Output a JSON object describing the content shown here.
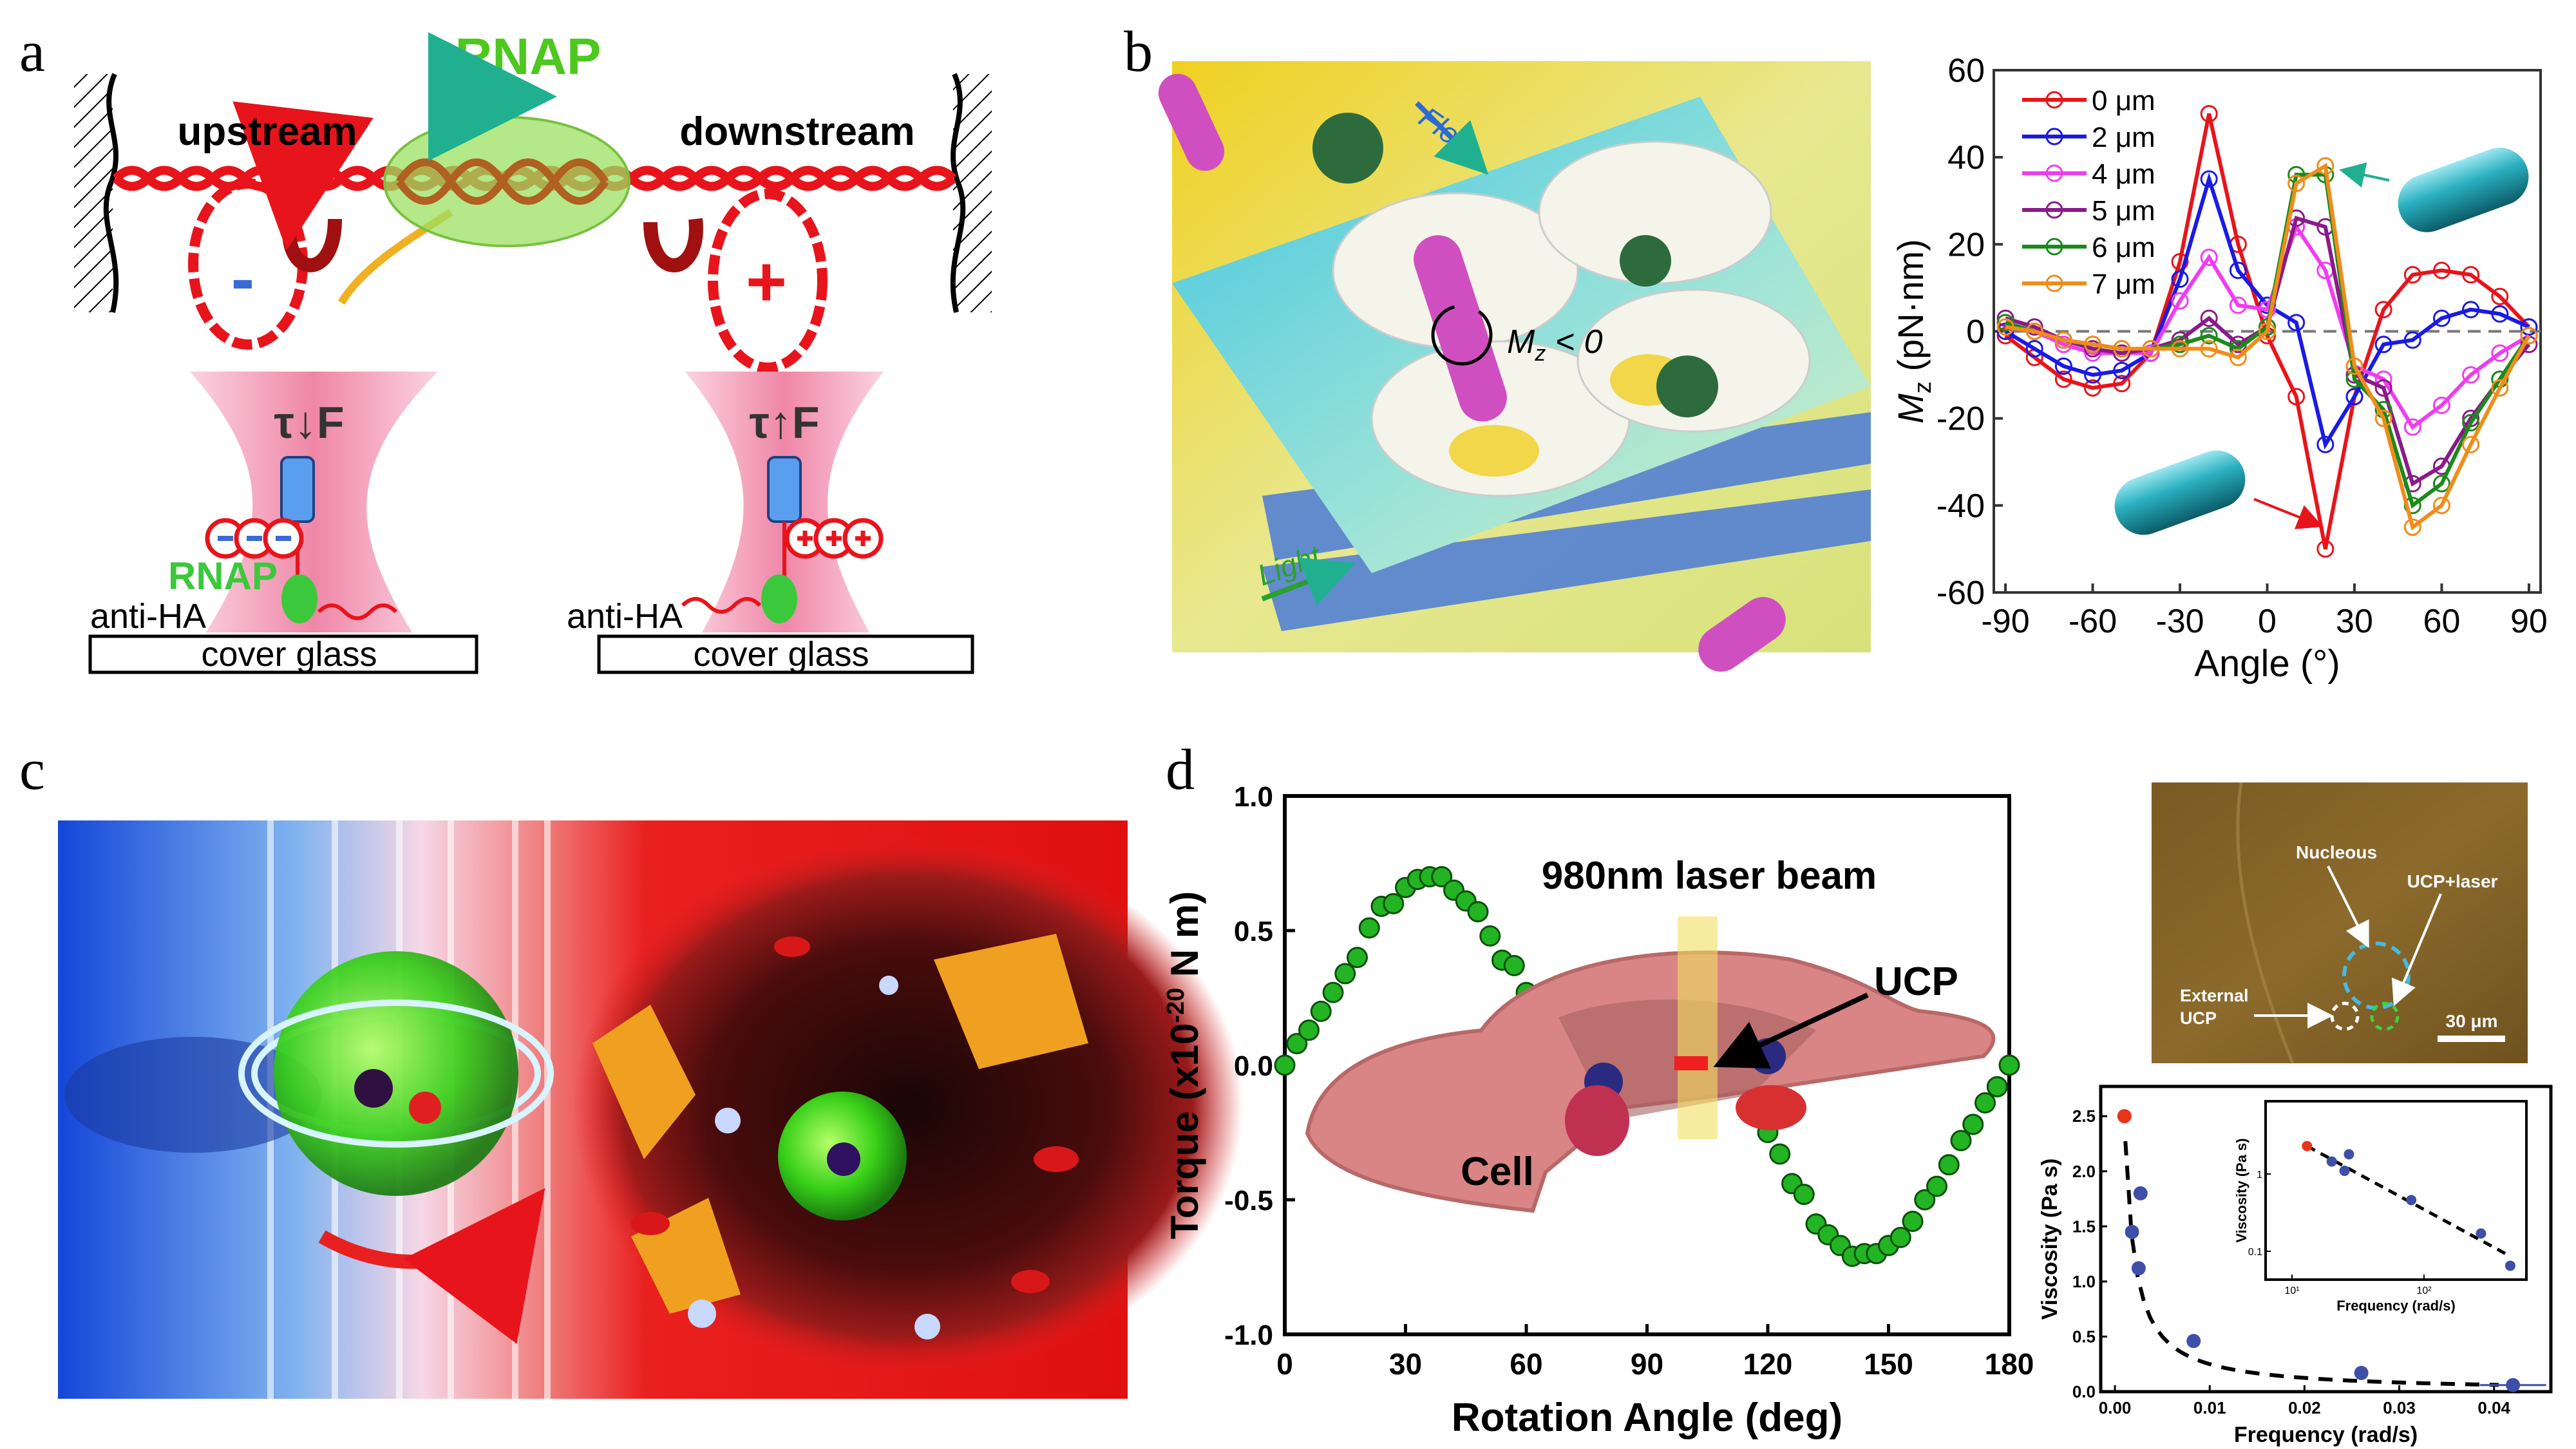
{
  "panel_labels": [
    "a",
    "b",
    "c",
    "d"
  ],
  "panel_a": {
    "rnap_title": "RNAP",
    "upstream": "upstream",
    "downstream": "downstream",
    "minus_sign": "-",
    "plus_sign": "+",
    "tau_f_left": "τ↓F",
    "tau_f_right": "τ↑F",
    "rnap_small": "RNAP",
    "anti_ha_left": "anti-HA",
    "anti_ha_right": "anti-HA",
    "cover_glass_left": "cover glass",
    "cover_glass_right": "cover glass",
    "colors": {
      "dna": "#e8141b",
      "rnap": "#3cc83c",
      "trap": "#f7a8c4",
      "bead": "#5a9ef0"
    }
  },
  "panel_b": {
    "illustration": {
      "flow_label": "Flow",
      "light_label": "Light",
      "torque_label": "M",
      "torque_sub": "z",
      "torque_rel": " < 0"
    },
    "colors": {
      "background": "#e4e47a",
      "plane": "#5fd0d8",
      "rod": "#d04fc0",
      "bead": "#2d6b3c"
    }
  },
  "panel_d": {
    "laser_label": "980nm laser beam",
    "ucp_label": "UCP",
    "cell_label": "Cell",
    "micrograph": {
      "nucleous": "Nucleous",
      "ucp_laser": "UCP+laser",
      "external_line1": "External",
      "external_line2": "UCP",
      "scale_bar": "30 μm"
    }
  },
  "chart_data": [
    {
      "id": "b-torque-vs-angle",
      "type": "line",
      "xlabel": "Angle (°)",
      "ylabel": "M",
      "ylabel_sub": "z",
      "ylabel_unit": " (pN·nm)",
      "xlim": [
        -94,
        94
      ],
      "ylim": [
        -60,
        60
      ],
      "xticks": [
        -90,
        -60,
        -30,
        0,
        30,
        60,
        90
      ],
      "yticks": [
        -60,
        -40,
        -20,
        0,
        20,
        40,
        60
      ],
      "zero_line": "dashed",
      "legend": "top-left",
      "x": [
        -90,
        -80,
        -70,
        -60,
        -50,
        -40,
        -30,
        -20,
        -10,
        0,
        10,
        20,
        30,
        40,
        50,
        60,
        70,
        80,
        90
      ],
      "series": [
        {
          "name": "0 μm",
          "color": "#e8141b",
          "values": [
            -1,
            -6,
            -11,
            -13,
            -12,
            -5,
            16,
            50,
            20,
            -1,
            -15,
            -50,
            -15,
            5,
            13,
            14,
            13,
            8,
            1
          ]
        },
        {
          "name": "2 μm",
          "color": "#1a1ae6",
          "values": [
            0,
            -4,
            -8,
            -10,
            -9,
            -5,
            12,
            35,
            14,
            6,
            2,
            -26,
            -15,
            -3,
            -2,
            3,
            5,
            4,
            1
          ]
        },
        {
          "name": "4 μm",
          "color": "#f03cf0",
          "values": [
            2,
            0,
            -3,
            -5,
            -5,
            -5,
            7,
            17,
            6,
            5,
            24,
            14,
            -8,
            -11,
            -22,
            -17,
            -10,
            -5,
            -1
          ]
        },
        {
          "name": "5 μm",
          "color": "#8a1a8a",
          "values": [
            3,
            1,
            -2,
            -4,
            -5,
            -4,
            -2,
            3,
            -3,
            1,
            26,
            24,
            -10,
            -13,
            -35,
            -31,
            -20,
            -11,
            -3
          ]
        },
        {
          "name": "6 μm",
          "color": "#1a8a1a",
          "values": [
            2,
            0,
            -2,
            -3,
            -4,
            -4,
            -3,
            -1,
            -4,
            1,
            36,
            36,
            -11,
            -18,
            -40,
            -35,
            -21,
            -11,
            -1
          ]
        },
        {
          "name": "7 μm",
          "color": "#f08c1a",
          "values": [
            1,
            0,
            -2,
            -3,
            -4,
            -4,
            -4,
            -4,
            -6,
            0,
            34,
            38,
            -8,
            -20,
            -45,
            -40,
            -26,
            -13,
            -1
          ]
        }
      ]
    },
    {
      "id": "d-torque-vs-rotation",
      "type": "scatter",
      "xlabel": "Rotation Angle (deg)",
      "ylabel": "Torque (x10",
      "ylabel_sup": "-20",
      "ylabel_unit": " N m)",
      "xlim": [
        0,
        180
      ],
      "ylim": [
        -1.0,
        1.0
      ],
      "xticks": [
        0,
        30,
        60,
        90,
        120,
        150,
        180
      ],
      "yticks": [
        "-1.0",
        "-0.5",
        "0.0",
        "0.5",
        "1.0"
      ],
      "color": "#22b422",
      "x": [
        0,
        3,
        6,
        9,
        12,
        15,
        18,
        21,
        24,
        27,
        30,
        33,
        36,
        39,
        42,
        45,
        48,
        51,
        54,
        57,
        60,
        63,
        120,
        123,
        126,
        129,
        132,
        135,
        138,
        141,
        144,
        147,
        150,
        153,
        156,
        159,
        162,
        165,
        168,
        171,
        174,
        177,
        180
      ],
      "y": [
        0,
        0.08,
        0.13,
        0.2,
        0.27,
        0.34,
        0.4,
        0.51,
        0.59,
        0.6,
        0.66,
        0.69,
        0.7,
        0.7,
        0.65,
        0.61,
        0.57,
        0.48,
        0.39,
        0.37,
        0.27,
        0.23,
        -0.25,
        -0.33,
        -0.44,
        -0.48,
        -0.59,
        -0.63,
        -0.67,
        -0.71,
        -0.7,
        -0.7,
        -0.67,
        -0.64,
        -0.58,
        -0.5,
        -0.45,
        -0.37,
        -0.28,
        -0.22,
        -0.14,
        -0.08,
        0.0
      ]
    },
    {
      "id": "d-viscosity-vs-frequency",
      "type": "scatter",
      "xlabel": "Frequency (rad/s)",
      "ylabel": "Viscosity (Pa s)",
      "xlim": [
        -0.0015,
        0.046
      ],
      "ylim": [
        0,
        2.77
      ],
      "xticks": [
        "0.00",
        "0.01",
        "0.02",
        "0.03",
        "0.04"
      ],
      "yticks": [
        "0.0",
        "0.5",
        "1.0",
        "1.5",
        "2.0",
        "2.5"
      ],
      "fit": "dashed power-law",
      "points": [
        {
          "x": 0.001,
          "y": 2.5,
          "color": "#e8341b"
        },
        {
          "x": 0.0018,
          "y": 1.45,
          "color": "#3f4fa8"
        },
        {
          "x": 0.0027,
          "y": 1.8,
          "color": "#3f4fa8"
        },
        {
          "x": 0.0025,
          "y": 1.12,
          "color": "#3f4fa8"
        },
        {
          "x": 0.0083,
          "y": 0.46,
          "color": "#3f4fa8"
        },
        {
          "x": 0.026,
          "y": 0.17,
          "color": "#3f4fa8"
        },
        {
          "x": 0.042,
          "y": 0.06,
          "color": "#3f4fa8"
        }
      ],
      "inset": {
        "type": "scatter",
        "scale": "log-log",
        "xlabel": "Frequency (rad/s)",
        "ylabel": "Viscosity (Pa s)",
        "xticks": [
          "10¹",
          "10²"
        ],
        "yticks": [
          "0.1",
          "1"
        ],
        "points": [
          {
            "x": 13,
            "y": 2.3,
            "color": "#e8341b"
          },
          {
            "x": 20,
            "y": 1.45,
            "color": "#3f4fa8"
          },
          {
            "x": 25,
            "y": 1.1,
            "color": "#3f4fa8"
          },
          {
            "x": 27,
            "y": 1.8,
            "color": "#3f4fa8"
          },
          {
            "x": 80,
            "y": 0.46,
            "color": "#3f4fa8"
          },
          {
            "x": 270,
            "y": 0.17,
            "color": "#3f4fa8"
          },
          {
            "x": 450,
            "y": 0.065,
            "color": "#3f4fa8"
          }
        ]
      }
    }
  ]
}
